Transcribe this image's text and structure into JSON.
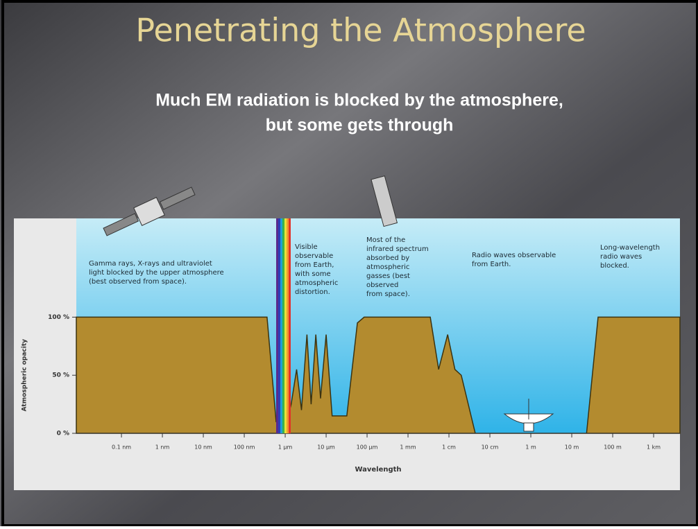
{
  "title": "Penetrating the Atmosphere",
  "subtitle": [
    "Much EM radiation is blocked by the atmosphere,",
    "but some gets through"
  ],
  "chart_data": {
    "type": "area",
    "x_label": "Wavelength",
    "y_label": "Atmospheric opacity",
    "xscale": "log",
    "xlim": [
      7.9e-12,
      4400
    ],
    "ylim": [
      0,
      185
    ],
    "xticks": [
      {
        "value": 1e-10,
        "label": "0.1 nm"
      },
      {
        "value": 1e-09,
        "label": "1 nm"
      },
      {
        "value": 1e-08,
        "label": "10 nm"
      },
      {
        "value": 1e-07,
        "label": "100 nm"
      },
      {
        "value": 1e-06,
        "label": "1 μm"
      },
      {
        "value": 1e-05,
        "label": "10 μm"
      },
      {
        "value": 0.0001,
        "label": "100 μm"
      },
      {
        "value": 0.001,
        "label": "1 mm"
      },
      {
        "value": 0.01,
        "label": "1 cm"
      },
      {
        "value": 0.1,
        "label": "10 cm"
      },
      {
        "value": 1,
        "label": "1 m"
      },
      {
        "value": 10,
        "label": "10 m"
      },
      {
        "value": 100,
        "label": "100 m"
      },
      {
        "value": 1000,
        "label": "1 km"
      }
    ],
    "yticks": [
      {
        "value": 0,
        "label": "0 %"
      },
      {
        "value": 50,
        "label": "50 %"
      },
      {
        "value": 100,
        "label": "100 %"
      }
    ],
    "x": [
      7.9e-12,
      3.6e-07,
      6e-07,
      1.05e-06,
      1.4e-06,
      1.9e-06,
      2.5e-06,
      3.4e-06,
      4.3e-06,
      5.6e-06,
      7.3e-06,
      1e-05,
      1.4e-05,
      3.2e-05,
      5.8e-05,
      8.5e-05,
      0.0035,
      0.0056,
      0.0093,
      0.014,
      0.02,
      0.044,
      23,
      44,
      4400
    ],
    "values": [
      100,
      100,
      10,
      8,
      25,
      55,
      20,
      85,
      25,
      85,
      30,
      85,
      15,
      15,
      95,
      100,
      100,
      55,
      85,
      55,
      50,
      0,
      0,
      100,
      100
    ],
    "color": "#b38b2f",
    "annotations": [
      {
        "x": 128,
        "y": 380,
        "lines": [
          "Gamma rays, X-rays and ultraviolet",
          "light blocked by the upper atmosphere",
          "(best observed from space)."
        ]
      },
      {
        "x": 425,
        "y": 356,
        "lines": [
          "Visible",
          "observable",
          "from Earth,",
          "with some",
          "atmospheric",
          "distortion."
        ]
      },
      {
        "x": 528,
        "y": 346,
        "lines": [
          "Most of the",
          "infrared spectrum",
          "absorbed by",
          "atmospheric",
          "gasses (best",
          "observed",
          "from space)."
        ]
      },
      {
        "x": 680,
        "y": 368,
        "lines": [
          "Radio waves observable",
          "from Earth."
        ]
      },
      {
        "x": 865,
        "y": 357,
        "lines": [
          "Long-wavelength",
          "radio waves",
          "blocked."
        ]
      }
    ]
  }
}
